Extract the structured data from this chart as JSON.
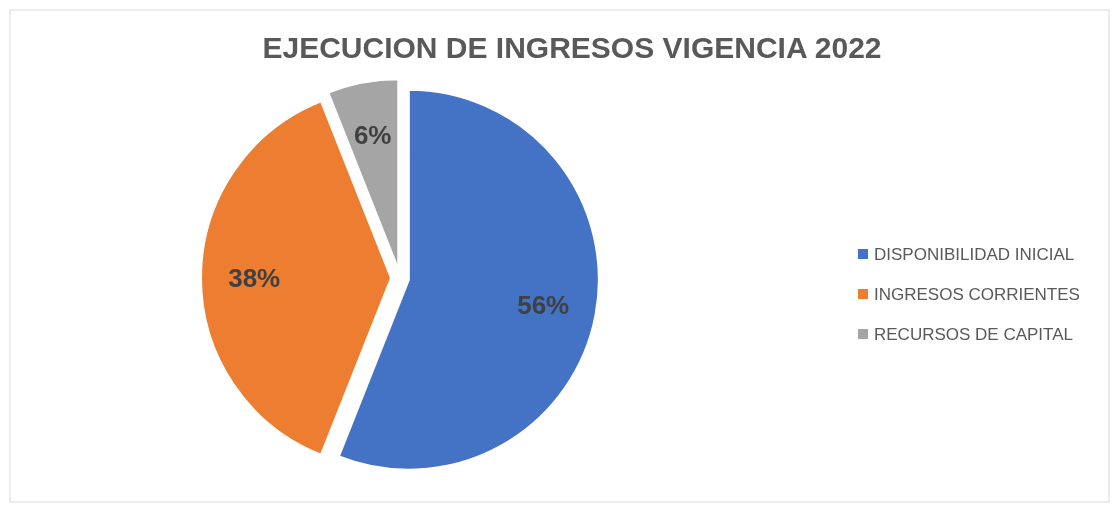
{
  "chart_data": {
    "type": "pie",
    "title": "EJECUCION DE INGRESOS VIGENCIA 2022",
    "categories": [
      "DISPONIBILIDAD INICIAL",
      "INGRESOS CORRIENTES",
      "RECURSOS DE CAPITAL"
    ],
    "values": [
      56,
      38,
      6
    ],
    "colors": [
      "#4472c4",
      "#ed7d31",
      "#a5a5a5"
    ],
    "value_labels": [
      "56%",
      "38%",
      "6%"
    ],
    "legend": "right"
  }
}
